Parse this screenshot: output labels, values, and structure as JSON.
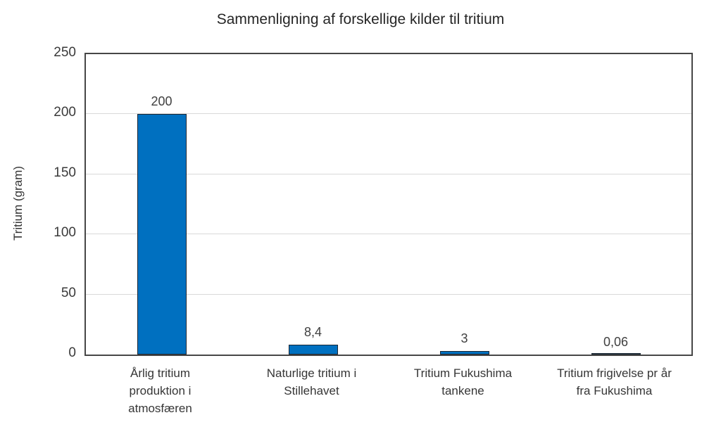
{
  "chart_data": {
    "type": "bar",
    "title": "Sammenligning af forskellige kilder til tritium",
    "xlabel": "",
    "ylabel": "Tritium (gram)",
    "categories": [
      "Årlig tritium produktion i atmosfæren",
      "Naturlige tritium i Stillehavet",
      "Tritium Fukushima tankene",
      "Tritium frigivelse pr år fra Fukushima"
    ],
    "category_lines": [
      [
        "Årlig tritium",
        "produktion i",
        "atmosfæren"
      ],
      [
        "Naturlige tritium i",
        "Stillehavet"
      ],
      [
        "Tritium Fukushima",
        "tankene"
      ],
      [
        "Tritium frigivelse pr år",
        "fra Fukushima"
      ]
    ],
    "values": [
      200,
      8.4,
      3,
      0.06
    ],
    "value_labels": [
      "200",
      "8,4",
      "3",
      "0,06"
    ],
    "ylim": [
      0,
      250
    ],
    "yticks": [
      0,
      50,
      100,
      150,
      200,
      250
    ],
    "grid": "horizontal-major",
    "legend": "none",
    "colors": {
      "bar_fill": "#0070C0",
      "bar_border": "#1a2733",
      "gridline": "#d9d9d9",
      "plot_border": "#464646",
      "tick_text": "#3a3a3a",
      "title_text": "#262626"
    }
  }
}
